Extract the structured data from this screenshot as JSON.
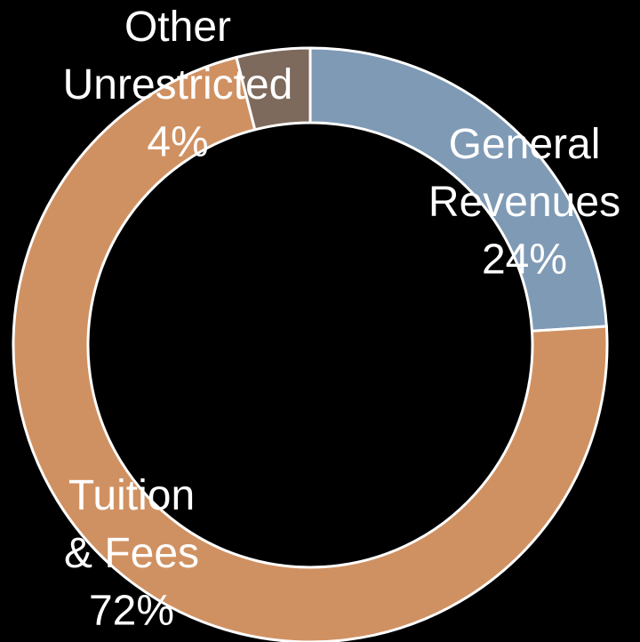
{
  "chart_data": {
    "type": "donut",
    "categories": [
      "General Revenues",
      "Tuition & Fees",
      "Other Unrestricted"
    ],
    "values": [
      24,
      72,
      4
    ],
    "value_labels": [
      "24%",
      "72%",
      "4%"
    ],
    "colors": [
      "#7f9ab5",
      "#d09162",
      "#7d6a5c"
    ]
  }
}
